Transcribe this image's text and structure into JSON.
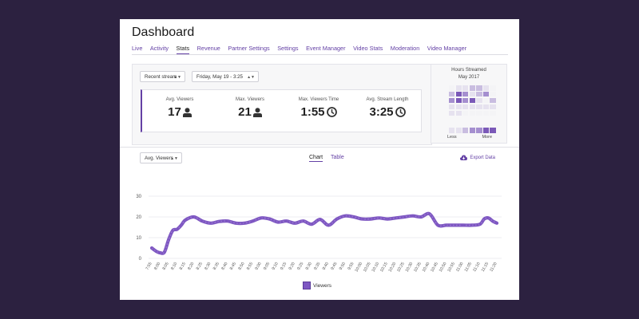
{
  "header": {
    "title": "Dashboard"
  },
  "nav": {
    "tabs": [
      {
        "label": "Live"
      },
      {
        "label": "Activity"
      },
      {
        "label": "Stats",
        "active": true
      },
      {
        "label": "Revenue"
      },
      {
        "label": "Partner Settings"
      },
      {
        "label": "Settings"
      },
      {
        "label": "Event Manager"
      },
      {
        "label": "Video Stats"
      },
      {
        "label": "Moderation"
      },
      {
        "label": "Video Manager"
      }
    ]
  },
  "filters": {
    "stream": "Recent stream",
    "date": "Friday, May 19 - 3:25"
  },
  "metrics": [
    {
      "label": "Avg. Viewers",
      "value": "17",
      "icon": "person-icon"
    },
    {
      "label": "Max. Viewers",
      "value": "21",
      "icon": "person-icon"
    },
    {
      "label": "Max. Viewers Time",
      "value": "1:55",
      "icon": "clock-icon"
    },
    {
      "label": "Avg. Stream Length",
      "value": "3:25",
      "icon": "clock-icon"
    }
  ],
  "heatmap": {
    "title_line1": "Hours Streamed",
    "title_line2": "May 2017",
    "less_label": "Less",
    "more_label": "More",
    "levels": [
      [
        0,
        1,
        1,
        2,
        2,
        1,
        0
      ],
      [
        2,
        4,
        3,
        1,
        2,
        3,
        0
      ],
      [
        3,
        4,
        3,
        4,
        1,
        0,
        2
      ],
      [
        1,
        1,
        1,
        1,
        1,
        1,
        1
      ],
      [
        1,
        1,
        0,
        0,
        0,
        0,
        0
      ]
    ],
    "legend_levels": [
      1,
      1,
      2,
      3,
      3,
      4,
      4
    ],
    "colors": [
      "#f4f4f6",
      "#e6e2ef",
      "#c9bde0",
      "#a58fcf",
      "#7b59b8"
    ]
  },
  "chart_controls": {
    "metric_select": "Avg. Viewers",
    "tab_chart": "Chart",
    "tab_table": "Table",
    "export_label": "Export Data"
  },
  "chart_data": {
    "type": "line",
    "title": "",
    "xlabel": "",
    "ylabel": "",
    "ylim": [
      0,
      30
    ],
    "yticks": [
      0,
      10,
      20,
      30
    ],
    "categories": [
      "7:55",
      "8:00",
      "8:05",
      "8:10",
      "8:15",
      "8:20",
      "8:25",
      "8:30",
      "8:35",
      "8:40",
      "8:45",
      "8:50",
      "8:55",
      "9:00",
      "9:05",
      "9:10",
      "9:15",
      "9:20",
      "9:25",
      "9:30",
      "9:35",
      "9:40",
      "9:45",
      "9:50",
      "9:55",
      "10:00",
      "10:05",
      "10:10",
      "10:15",
      "10:20",
      "10:25",
      "10:30",
      "10:35",
      "10:40",
      "10:45",
      "10:50",
      "10:55",
      "11:00",
      "11:05",
      "11:10",
      "11:15",
      "11:20"
    ],
    "series": [
      {
        "name": "Viewers",
        "color": "#7e57c2",
        "x": [
          0,
          0.5,
          1,
          1.5,
          2,
          2.5,
          3,
          3.5,
          4,
          5,
          6,
          7,
          8,
          9,
          10,
          11,
          12,
          13,
          14,
          15,
          16,
          17,
          18,
          19,
          20,
          21,
          22,
          23,
          24,
          25,
          26,
          27,
          28,
          29,
          30,
          31,
          32,
          33,
          34,
          35,
          36,
          37,
          38,
          39,
          39.5,
          40,
          40.5,
          41
        ],
        "values": [
          5,
          3.5,
          2.7,
          3,
          9,
          13.5,
          14,
          16,
          18.5,
          20,
          18,
          17,
          17.8,
          18,
          17,
          17,
          18,
          19.5,
          19,
          17.5,
          18,
          17,
          18,
          16.5,
          18.8,
          16,
          19,
          20.5,
          20,
          19,
          19,
          19.5,
          19,
          19.5,
          20,
          20.5,
          20,
          21.5,
          16,
          16,
          16,
          16,
          16,
          16.5,
          19,
          19.5,
          18,
          17
        ]
      }
    ]
  }
}
